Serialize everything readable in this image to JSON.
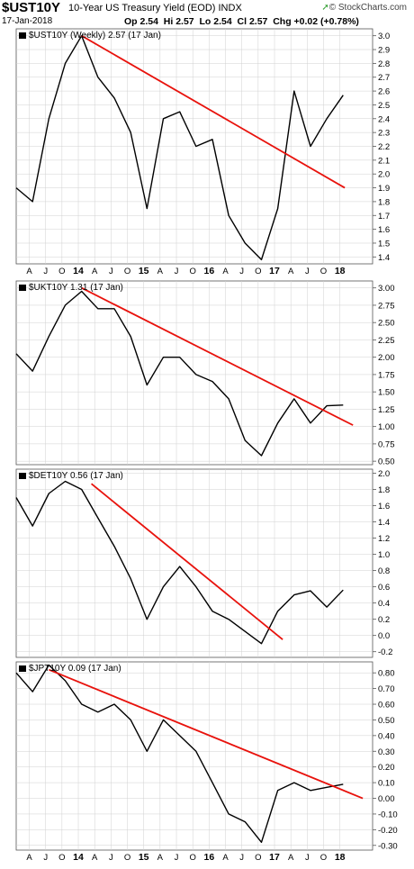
{
  "header": {
    "symbol": "$UST10Y",
    "name": "10-Year US Treasury Yield (EOD)",
    "exchange": "INDX",
    "date": "17-Jan-2018",
    "quote": {
      "open": "2.54",
      "high": "2.57",
      "low": "2.54",
      "close": "2.57",
      "change": "+0.02 (+0.78%)"
    },
    "brand": "© StockCharts.com"
  },
  "colors": {
    "line": "#000000",
    "trendline": "#e8120c",
    "grid": "#d0d0d0",
    "brand_arrow": "#2e9e2e"
  },
  "chart_data": [
    {
      "type": "line",
      "title": "$UST10Y (Weekly) 2.57 (17 Jan)",
      "x_tick_labels": [
        "A",
        "J",
        "O",
        "14",
        "A",
        "J",
        "O",
        "15",
        "A",
        "J",
        "O",
        "16",
        "A",
        "J",
        "O",
        "17",
        "A",
        "J",
        "O",
        "18"
      ],
      "y_ticks": [
        "3.0",
        "2.9",
        "2.8",
        "2.7",
        "2.6",
        "2.5",
        "2.4",
        "2.3",
        "2.2",
        "2.1",
        "2.0",
        "1.9",
        "1.8",
        "1.7",
        "1.6",
        "1.5",
        "1.4"
      ],
      "ylim": [
        1.35,
        3.05
      ],
      "series": [
        {
          "x": [
            0,
            1,
            2,
            3,
            4,
            5,
            6,
            7,
            8,
            9,
            10,
            11,
            12,
            13,
            14,
            15,
            16,
            17,
            18,
            19,
            20
          ],
          "values": [
            1.9,
            1.8,
            2.4,
            2.8,
            3.0,
            2.7,
            2.55,
            2.3,
            1.75,
            2.4,
            2.45,
            2.2,
            2.25,
            1.7,
            1.5,
            1.38,
            1.75,
            2.6,
            2.2,
            2.4,
            2.57
          ]
        }
      ],
      "trendline": {
        "x": [
          4,
          20.1
        ],
        "values": [
          3.0,
          1.9
        ]
      }
    },
    {
      "type": "line",
      "title": "$UKT10Y 1.31 (17 Jan)",
      "x_tick_labels": [],
      "y_ticks": [
        "3.00",
        "2.75",
        "2.50",
        "2.25",
        "2.00",
        "1.75",
        "1.50",
        "1.25",
        "1.00",
        "0.75",
        "0.50"
      ],
      "ylim": [
        0.45,
        3.1
      ],
      "series": [
        {
          "x": [
            0,
            1,
            2,
            3,
            4,
            5,
            6,
            7,
            8,
            9,
            10,
            11,
            12,
            13,
            14,
            15,
            16,
            17,
            18,
            19,
            20
          ],
          "values": [
            2.05,
            1.8,
            2.3,
            2.75,
            2.95,
            2.7,
            2.7,
            2.3,
            1.6,
            2.0,
            2.0,
            1.75,
            1.65,
            1.4,
            0.8,
            0.58,
            1.05,
            1.4,
            1.05,
            1.3,
            1.31
          ]
        }
      ],
      "trendline": {
        "x": [
          4,
          20.6
        ],
        "values": [
          3.0,
          1.02
        ]
      }
    },
    {
      "type": "line",
      "title": "$DET10Y 0.56 (17 Jan)",
      "x_tick_labels": [],
      "y_ticks": [
        "2.0",
        "1.8",
        "1.6",
        "1.4",
        "1.2",
        "1.0",
        "0.8",
        "0.6",
        "0.4",
        "0.2",
        "0.0",
        "-0.2"
      ],
      "ylim": [
        -0.27,
        2.05
      ],
      "series": [
        {
          "x": [
            0,
            1,
            2,
            3,
            4,
            5,
            6,
            7,
            8,
            9,
            10,
            11,
            12,
            13,
            14,
            15,
            16,
            17,
            18,
            19,
            20
          ],
          "values": [
            1.7,
            1.35,
            1.75,
            1.9,
            1.8,
            1.45,
            1.1,
            0.7,
            0.2,
            0.6,
            0.85,
            0.6,
            0.3,
            0.2,
            0.05,
            -0.1,
            0.3,
            0.5,
            0.55,
            0.35,
            0.56
          ]
        }
      ],
      "trendline": {
        "x": [
          4.6,
          16.3
        ],
        "values": [
          1.87,
          -0.05
        ]
      }
    },
    {
      "type": "line",
      "title": "$JPT10Y 0.09 (17 Jan)",
      "x_tick_labels": [
        "A",
        "J",
        "O",
        "14",
        "A",
        "J",
        "O",
        "15",
        "A",
        "J",
        "O",
        "16",
        "A",
        "J",
        "O",
        "17",
        "A",
        "J",
        "O",
        "18"
      ],
      "y_ticks": [
        "0.80",
        "0.70",
        "0.60",
        "0.50",
        "0.40",
        "0.30",
        "0.20",
        "0.10",
        "0.00",
        "-0.10",
        "-0.20",
        "-0.30"
      ],
      "ylim": [
        -0.33,
        0.87
      ],
      "series": [
        {
          "x": [
            0,
            1,
            2,
            3,
            4,
            5,
            6,
            7,
            8,
            9,
            10,
            11,
            12,
            13,
            14,
            15,
            16,
            17,
            18,
            19,
            20
          ],
          "values": [
            0.8,
            0.68,
            0.85,
            0.75,
            0.6,
            0.55,
            0.6,
            0.5,
            0.3,
            0.5,
            0.4,
            0.3,
            0.1,
            -0.1,
            -0.15,
            -0.28,
            0.05,
            0.1,
            0.05,
            0.07,
            0.09
          ]
        }
      ],
      "trendline": {
        "x": [
          2,
          21.2
        ],
        "values": [
          0.82,
          0.0
        ]
      }
    }
  ]
}
